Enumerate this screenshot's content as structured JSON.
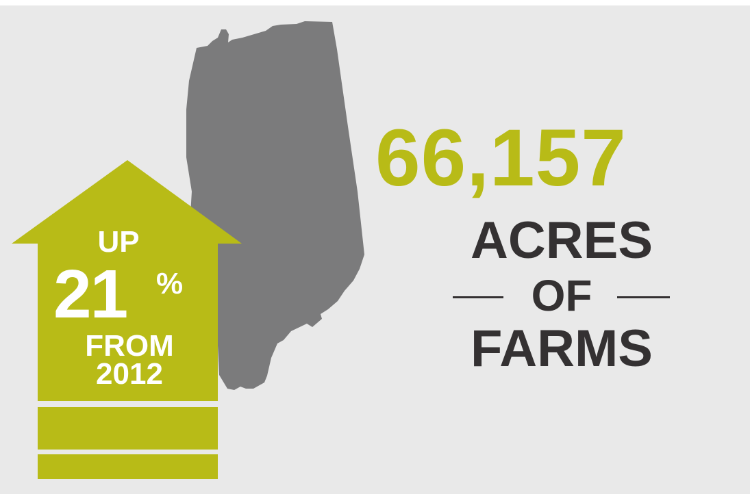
{
  "colors": {
    "background": "#e9e9e9",
    "map_fill": "#7b7b7c",
    "accent": "#b8bb17",
    "text_dark": "#343132",
    "text_light": "#ffffff"
  },
  "arrow": {
    "line1": "UP",
    "number": "21",
    "percent_sign": "%",
    "line3": "FROM",
    "year": "2012"
  },
  "stat": {
    "value": "66,157",
    "label_line1": "ACRES",
    "label_line2": "OF",
    "label_line3": "FARMS"
  }
}
